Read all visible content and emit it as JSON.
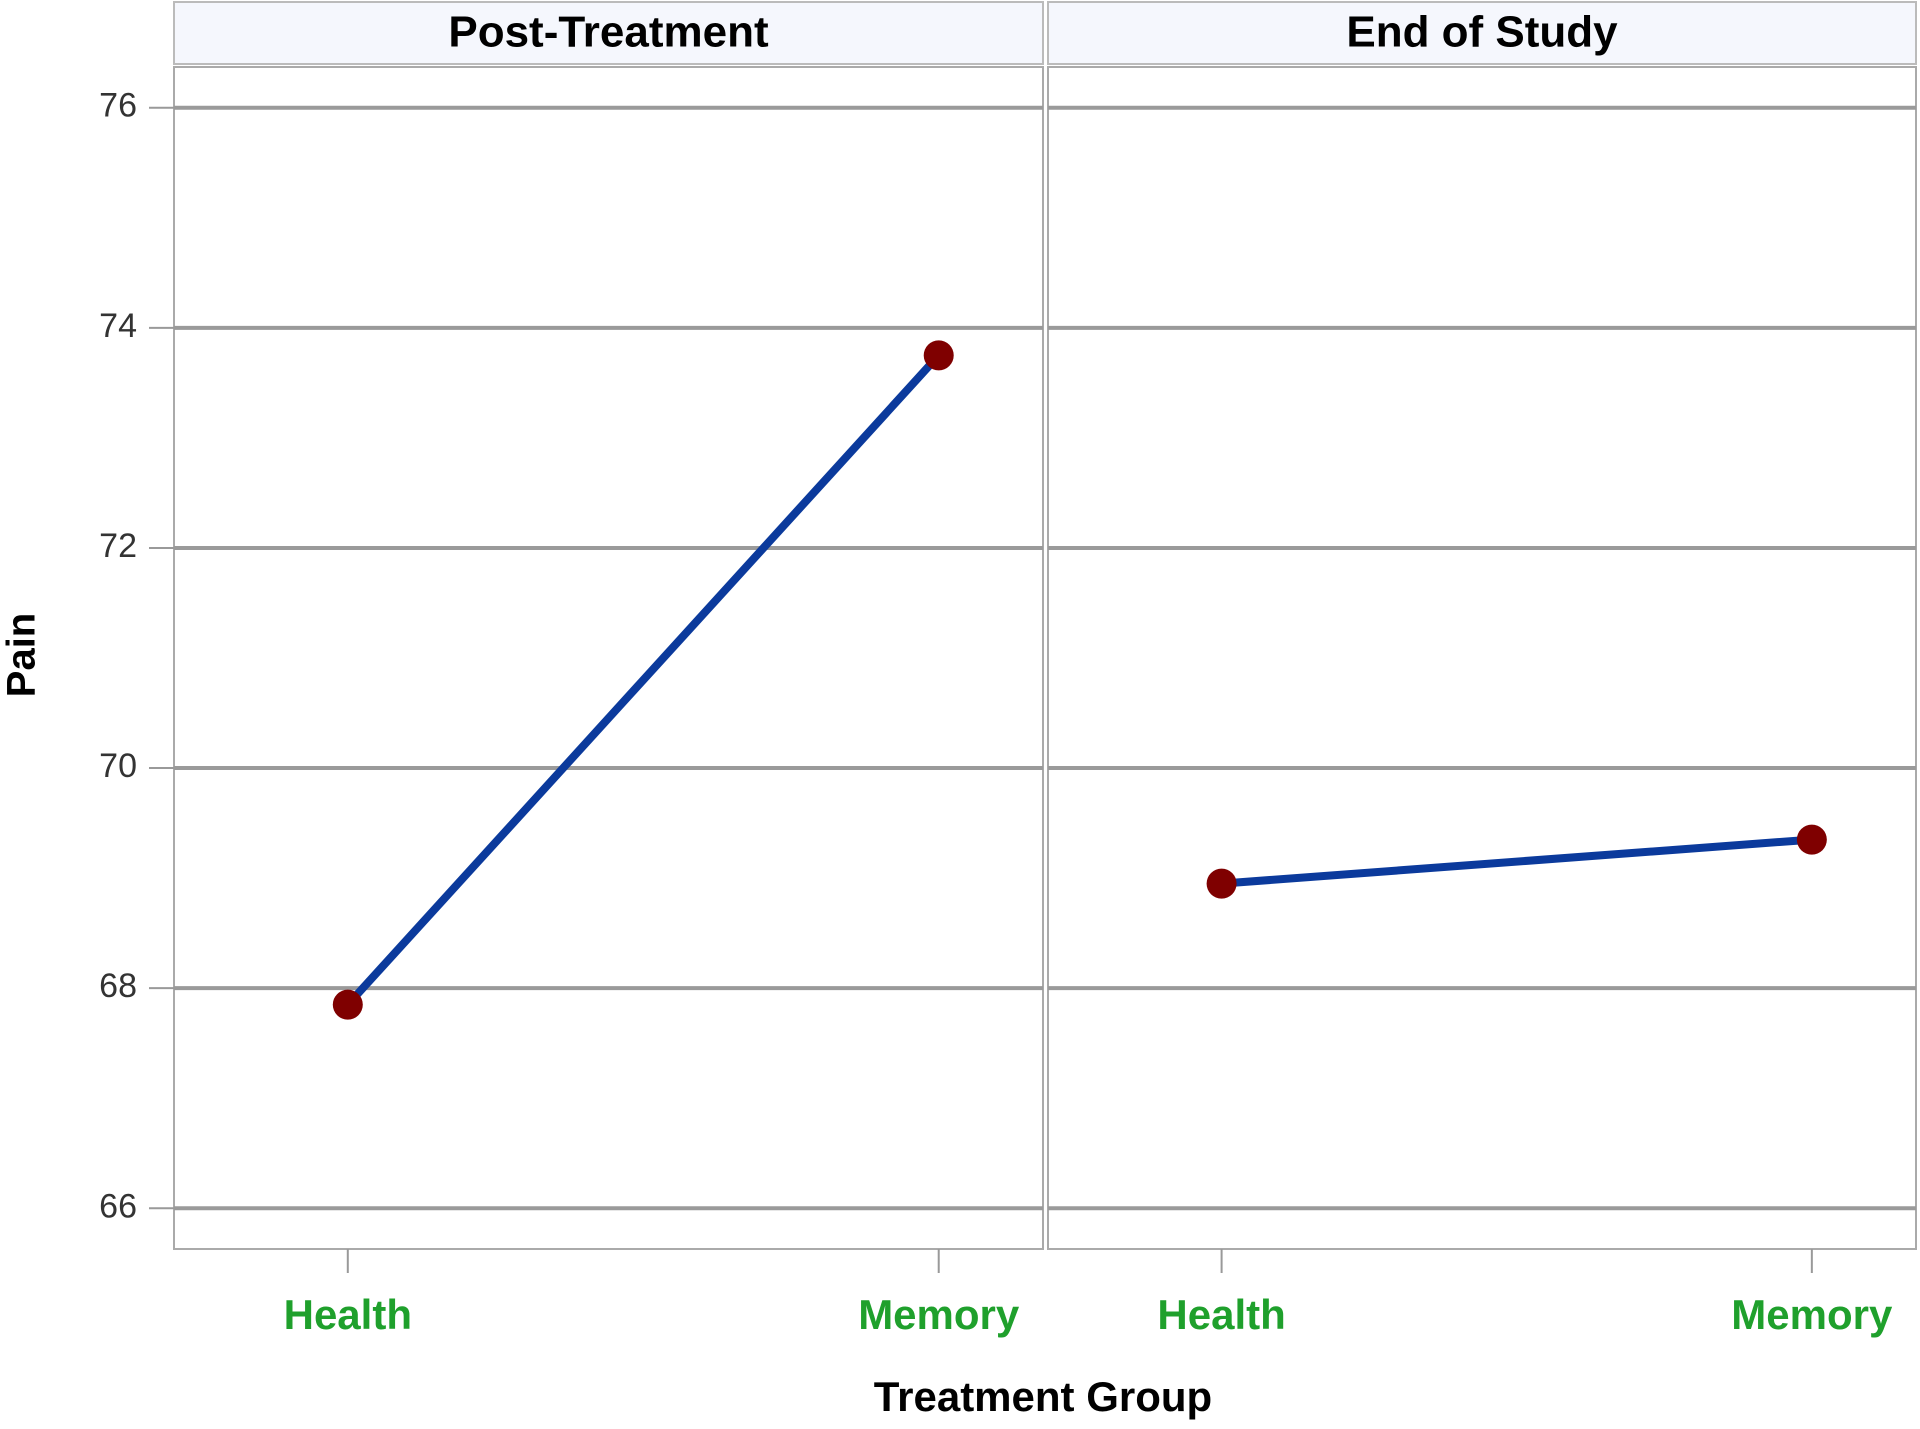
{
  "chart_data": {
    "type": "line",
    "ylabel": "Pain",
    "xlabel": "Treatment Group",
    "ylim": [
      65.63,
      76.37
    ],
    "yticks": [
      66,
      68,
      70,
      72,
      74,
      76
    ],
    "grid": true,
    "color": "#0b3a9c",
    "marker_color": "#7f0000",
    "category_color": "#1fa02c",
    "panels": [
      {
        "title": "Post-Treatment",
        "categories": [
          "Health",
          "Memory"
        ],
        "values": [
          67.85,
          73.75
        ]
      },
      {
        "title": "End of Study",
        "categories": [
          "Health",
          "Memory"
        ],
        "values": [
          68.95,
          69.35
        ]
      }
    ]
  }
}
